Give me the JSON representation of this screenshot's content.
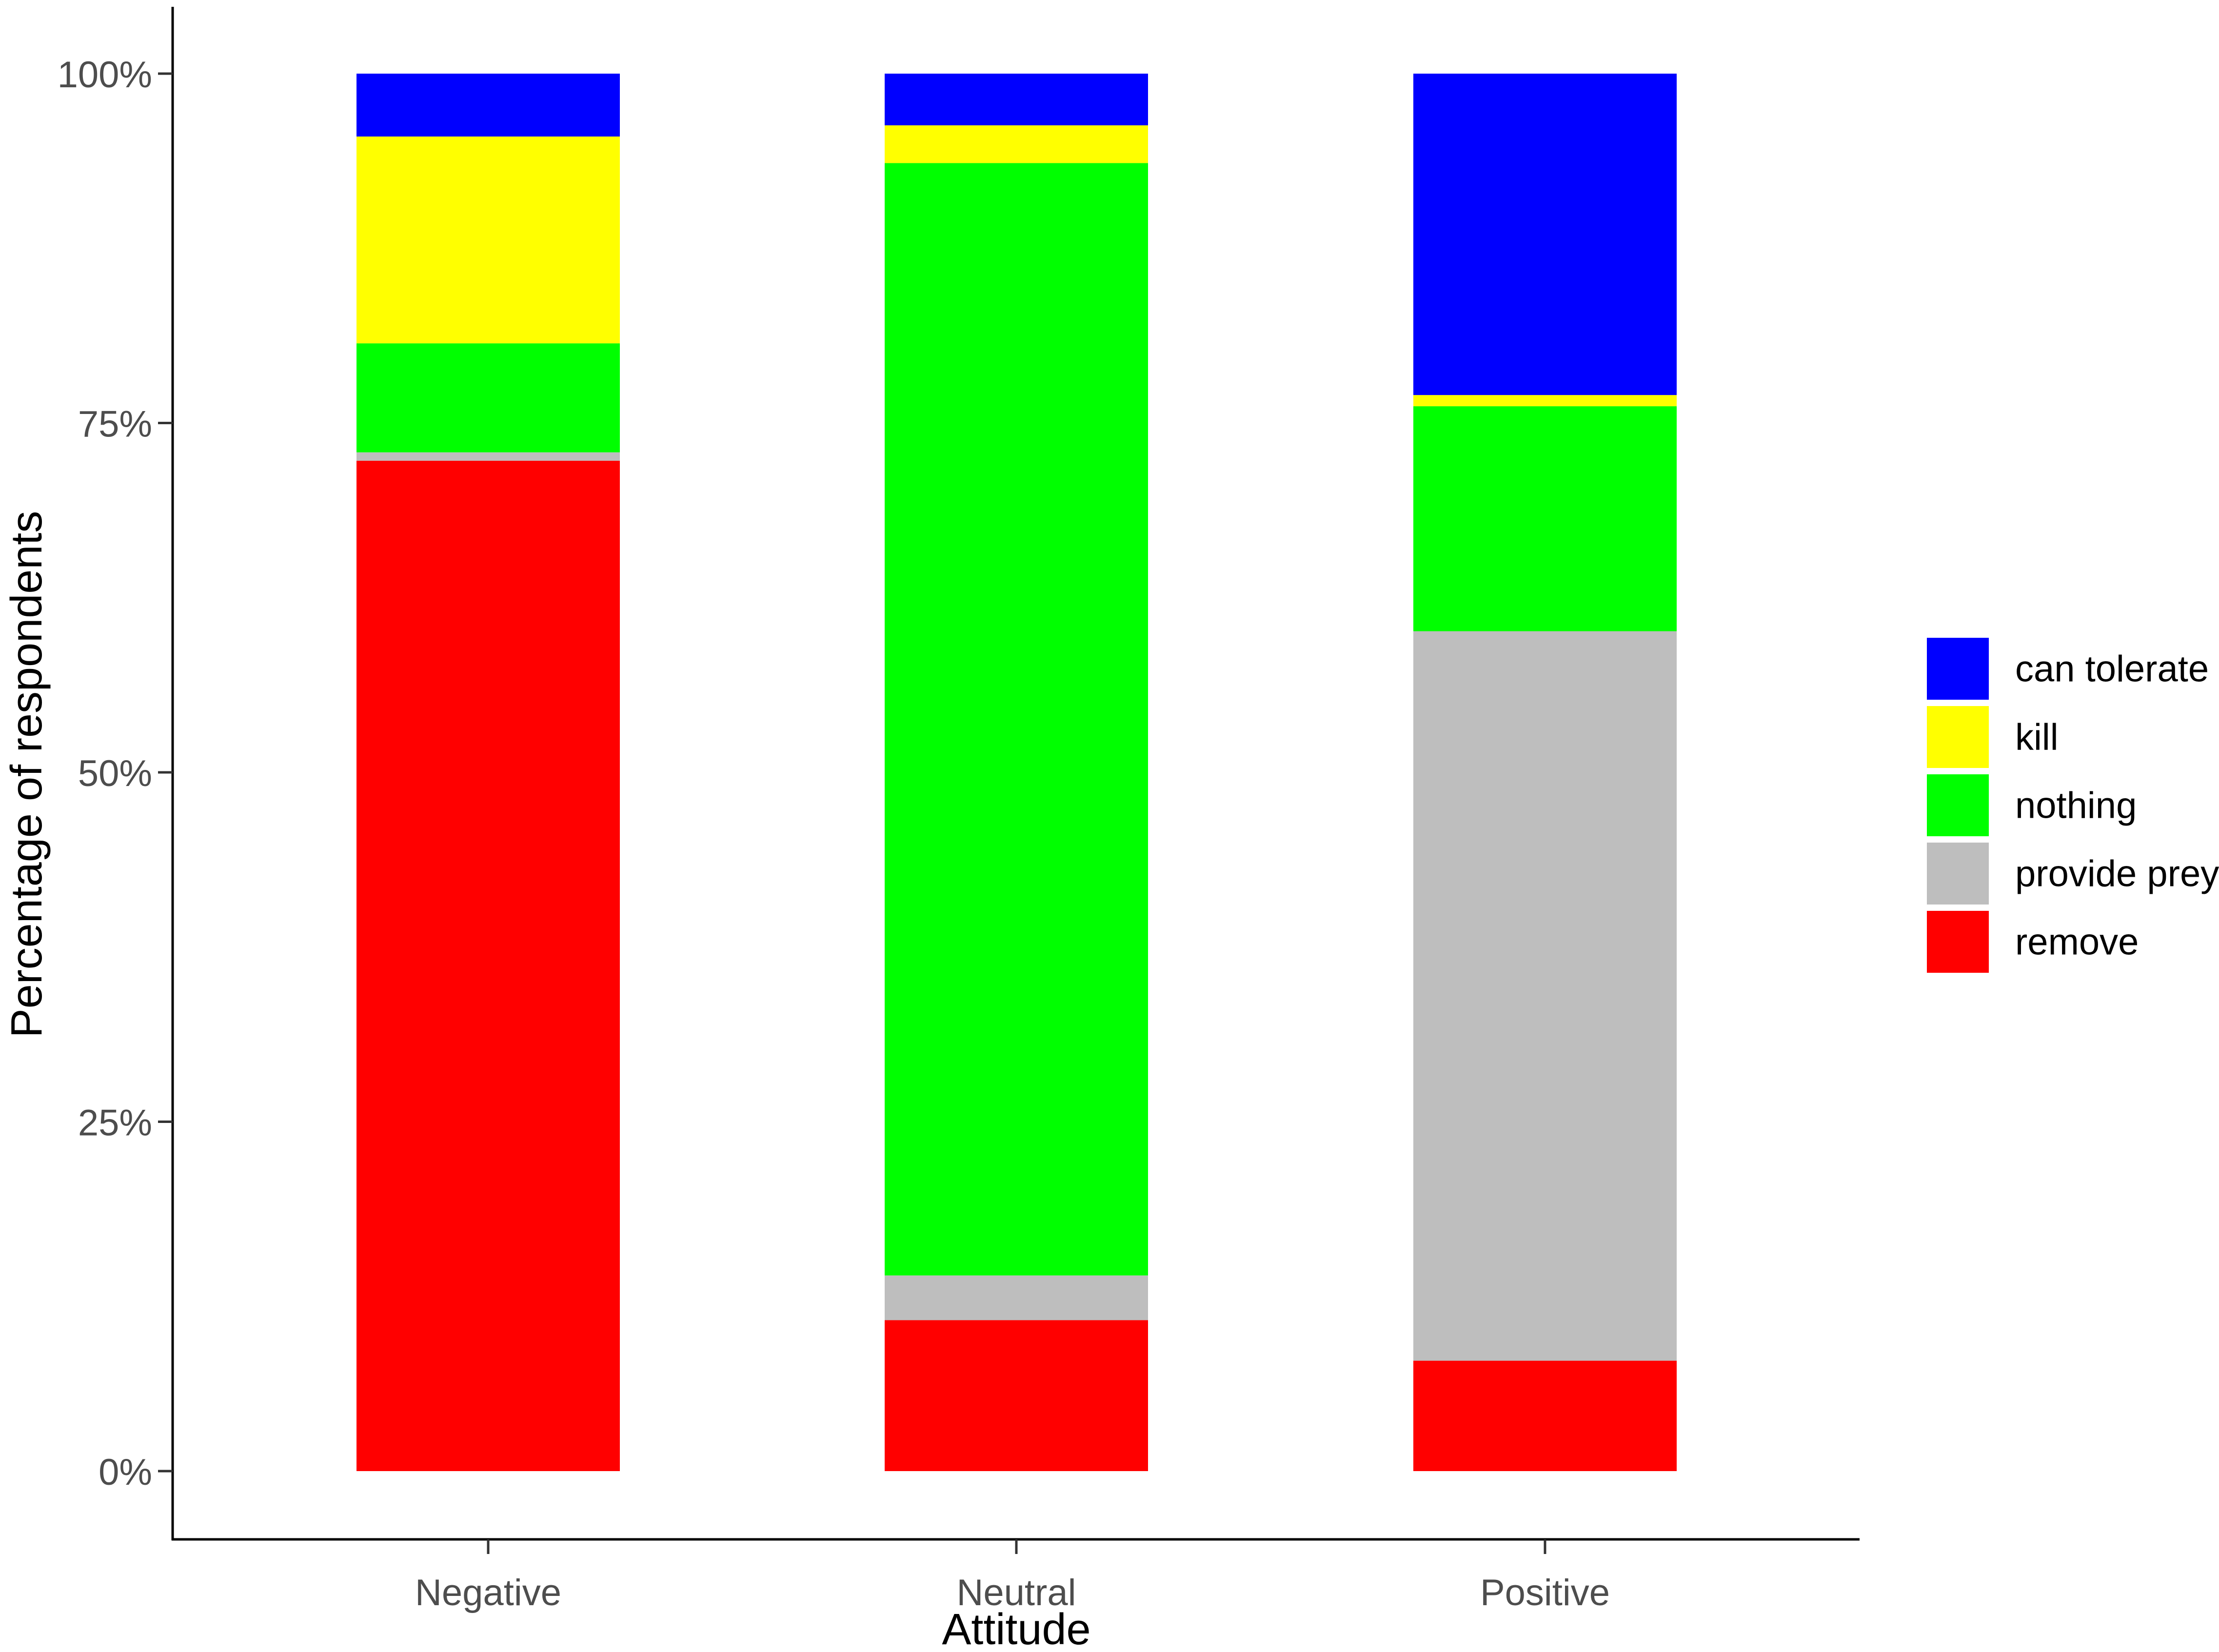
{
  "chart_data": {
    "type": "bar",
    "stacked": true,
    "normalized": true,
    "title": "",
    "xlabel": "Attitude",
    "ylabel": "Percentage of respondents",
    "ylim": [
      0,
      100
    ],
    "y_ticks": [
      "0%",
      "25%",
      "50%",
      "75%",
      "100%"
    ],
    "y_tick_values": [
      0,
      25,
      50,
      75,
      100
    ],
    "categories": [
      "Negative",
      "Neutral",
      "Positive"
    ],
    "series": [
      {
        "name": "remove",
        "color": "#ff0000",
        "values": [
          72.3,
          10.8,
          7.9
        ]
      },
      {
        "name": "provide prey",
        "color": "#bebebe",
        "values": [
          0.6,
          3.2,
          52.2
        ]
      },
      {
        "name": "nothing",
        "color": "#00ff00",
        "values": [
          7.8,
          79.6,
          16.1
        ]
      },
      {
        "name": "kill",
        "color": "#ffff00",
        "values": [
          14.8,
          2.7,
          0.8
        ]
      },
      {
        "name": "can tolerate",
        "color": "#0000ff",
        "values": [
          4.5,
          3.7,
          23.0
        ]
      }
    ],
    "legend": {
      "position": "right",
      "order": [
        "can tolerate",
        "kill",
        "nothing",
        "provide prey",
        "remove"
      ]
    },
    "grid": false
  }
}
